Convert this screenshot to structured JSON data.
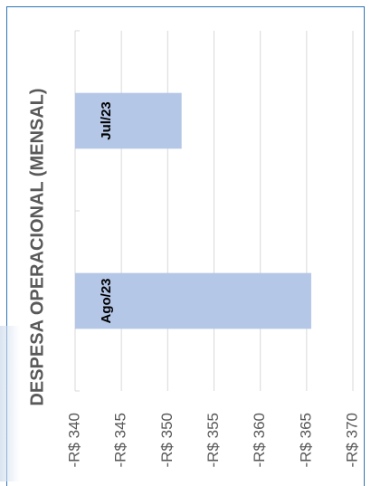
{
  "chart_data": {
    "type": "bar",
    "orientation": "vertical-bars-rotated",
    "title": "DESPESA OPERACIONAL (MENSAL)",
    "categories": [
      "Jul/23",
      "Ago/23"
    ],
    "values": [
      -351.5,
      -365.5
    ],
    "value_axis": {
      "ticks": [
        "-R$ 340",
        "-R$ 345",
        "-R$ 350",
        "-R$ 355",
        "-R$ 360",
        "-R$ 365",
        "-R$ 370"
      ],
      "range": [
        -340,
        -370
      ],
      "gridlines": true
    },
    "legend": "none",
    "bar_color": "#b4c7e7",
    "gridline_color": "#d9d9d9"
  }
}
